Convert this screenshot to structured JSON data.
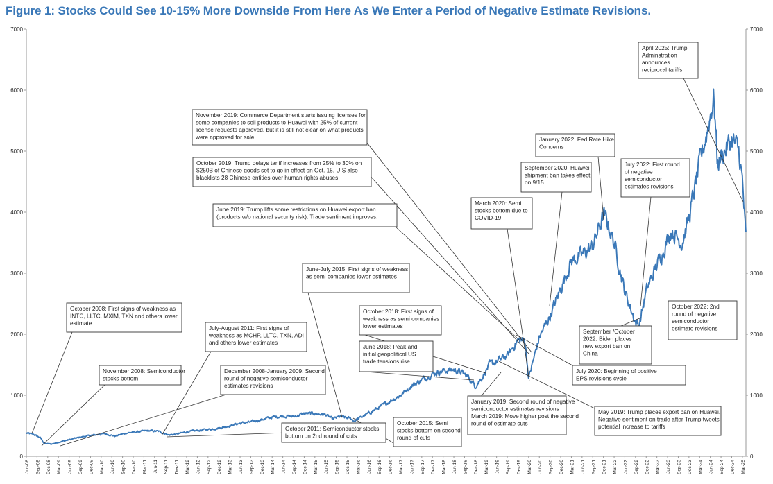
{
  "chart_data": {
    "type": "line",
    "title": "Figure 1: Stocks Could See 10-15% More Downside From Here As We Enter a Period of Negative Estimate Revisions.",
    "xlabel": "",
    "ylabel": "",
    "ylim": [
      0,
      7000
    ],
    "y_ticks": [
      0,
      1000,
      2000,
      3000,
      4000,
      5000,
      6000,
      7000
    ],
    "right_axis_mirrors_left": true,
    "grid": false,
    "legend": "none",
    "line_color": "#3a78b8",
    "x_tick_labels": [
      "Jun-08",
      "Sep-08",
      "Dec-08",
      "Mar-09",
      "Jun-09",
      "Sep-09",
      "Dec-09",
      "Mar-10",
      "Jun-10",
      "Sep-10",
      "Dec-10",
      "Mar-11",
      "Jun-11",
      "Sep-11",
      "Dec-11",
      "Mar-12",
      "Jun-12",
      "Sep-12",
      "Dec-12",
      "Mar-13",
      "Jun-13",
      "Sep-13",
      "Dec-13",
      "Mar-14",
      "Jun-14",
      "Sep-14",
      "Dec-14",
      "Mar-15",
      "Jun-15",
      "Sep-15",
      "Dec-15",
      "Mar-16",
      "Jun-16",
      "Sep-16",
      "Dec-16",
      "Mar-17",
      "Jun-17",
      "Sep-17",
      "Dec-17",
      "Mar-18",
      "Jun-18",
      "Sep-18",
      "Dec-18",
      "Mar-19",
      "Jun-19",
      "Sep-19",
      "Dec-19",
      "Mar-20",
      "Jun-20",
      "Sep-20",
      "Dec-20",
      "Mar-21",
      "Jun-21",
      "Sep-21",
      "Dec-21",
      "Mar-22",
      "Jun-22",
      "Sep-22",
      "Dec-22",
      "Mar-23",
      "Jun-23",
      "Sep-23",
      "Dec-23",
      "Mar-24",
      "Jun-24",
      "Sep-24",
      "Dec-24",
      "Mar-25"
    ],
    "series": [
      {
        "x": [
          "2008-06",
          "2008-08",
          "2008-10",
          "2008-11",
          "2009-01",
          "2009-03",
          "2009-06",
          "2009-09",
          "2009-12",
          "2010-04",
          "2010-07",
          "2010-10",
          "2011-01",
          "2011-04",
          "2011-07",
          "2011-10",
          "2011-12",
          "2012-03",
          "2012-06",
          "2012-09",
          "2012-12",
          "2013-03",
          "2013-06",
          "2013-09",
          "2013-12",
          "2014-03",
          "2014-06",
          "2014-09",
          "2014-12",
          "2015-03",
          "2015-06",
          "2015-08",
          "2015-10",
          "2016-01",
          "2016-02",
          "2016-06",
          "2016-09",
          "2016-12",
          "2017-03",
          "2017-06",
          "2017-09",
          "2017-12",
          "2018-03",
          "2018-06",
          "2018-08",
          "2018-10",
          "2018-12",
          "2019-02",
          "2019-04",
          "2019-06",
          "2019-09",
          "2019-12",
          "2020-02",
          "2020-03",
          "2020-06",
          "2020-09",
          "2020-12",
          "2021-03",
          "2021-06",
          "2021-09",
          "2021-12",
          "2022-01",
          "2022-03",
          "2022-06",
          "2022-09",
          "2022-10",
          "2022-12",
          "2023-02",
          "2023-05",
          "2023-07",
          "2023-10",
          "2023-12",
          "2024-03",
          "2024-05",
          "2024-07",
          "2024-08",
          "2024-10",
          "2024-12",
          "2025-01",
          "2025-02",
          "2025-03",
          "2025-04"
        ],
        "values": [
          380,
          360,
          300,
          210,
          200,
          230,
          270,
          310,
          340,
          370,
          330,
          380,
          400,
          420,
          410,
          350,
          360,
          400,
          420,
          440,
          460,
          500,
          540,
          560,
          600,
          640,
          660,
          650,
          700,
          700,
          680,
          610,
          650,
          620,
          580,
          700,
          800,
          900,
          1000,
          1150,
          1250,
          1350,
          1400,
          1420,
          1380,
          1300,
          1150,
          1300,
          1500,
          1550,
          1650,
          1900,
          1900,
          1280,
          1950,
          2300,
          2750,
          3200,
          3300,
          3450,
          3950,
          3850,
          3500,
          2700,
          2200,
          2150,
          2700,
          3000,
          3400,
          3700,
          3500,
          3900,
          4800,
          5300,
          5900,
          4800,
          5000,
          5200,
          5100,
          5000,
          4500,
          3550
        ]
      }
    ],
    "annotations": [
      {
        "lines": [
          "October 2008: First signs of weakness as",
          "INTC, LLTC, MXIM, TXN and others lower",
          "estimate"
        ],
        "target": "2008-06"
      },
      {
        "lines": [
          "November 2008: Semiconductor",
          "stocks bottom"
        ],
        "target": "2008-11"
      },
      {
        "lines": [
          "July-August 2011: First signs of",
          "weakness as MCHP, LLTC, TXN, ADI",
          "and others lower estimates"
        ],
        "target": "2011-07"
      },
      {
        "lines": [
          "December 2008-January 2009: Second",
          "round of negative semiconductor",
          "estimates revisions"
        ],
        "target": "2009-01"
      },
      {
        "lines": [
          "October 2011: Semiconductor stocks",
          "bottom on 2nd round of cuts"
        ],
        "target": "2011-10"
      },
      {
        "lines": [
          "June-July 2015: First signs of weakness",
          "as semi companies lower estimates"
        ],
        "target": "2015-06"
      },
      {
        "lines": [
          "October 2015: Semi",
          "stocks bottom on second",
          "round of cuts"
        ],
        "target": "2015-10"
      },
      {
        "lines": [
          "June 2018: Peak and",
          "initial geopolitical US",
          "trade tensions rise."
        ],
        "target": "2018-06"
      },
      {
        "lines": [
          "October 2018: First signs of",
          "weakness as semi companies",
          "lower estimates"
        ],
        "target": "2018-10"
      },
      {
        "lines": [
          "January 2019: Second round of negative",
          "semiconductor estimates revisions",
          "March 2019: Move higher post the second",
          "round of estimate cuts"
        ],
        "target": "2019-01"
      },
      {
        "lines": [
          "May 2019: Trump places export ban on Huawei.",
          "Negative sentiment on trade after Trump tweets",
          "potential increase to tariffs"
        ],
        "target": "2019-05"
      },
      {
        "lines": [
          "June 2019: Trump lifts some restrictions on Huawei export ban",
          "(products w/o national security risk). Trade sentiment improves."
        ],
        "target": "2019-06"
      },
      {
        "lines": [
          "October 2019: Trump delays tariff increases from 25% to 30% on",
          "$250B of Chinese goods set to go in effect on Oct. 15. U.S also",
          "blacklists 28 Chinese entities over human rights abuses."
        ],
        "target": "2019-10"
      },
      {
        "lines": [
          "November 2019: Commerce Department starts issuing licenses for",
          "some companies to sell products to Huawei with 25% of current",
          "license requests approved, but it is still not clear on what products",
          "were approved for sale."
        ],
        "target": "2019-11"
      },
      {
        "lines": [
          "March 2020: Semi",
          "stocks bottom due to",
          "COVID-19"
        ],
        "target": "2020-03"
      },
      {
        "lines": [
          "July 2020: Beginning of positive",
          "EPS revisions cycle"
        ],
        "target": "2020-07"
      },
      {
        "lines": [
          "September 2020: Huawei",
          "shipment ban takes effect",
          "on 9/15"
        ],
        "target": "2020-09"
      },
      {
        "lines": [
          "January 2022: Fed Rate Hike",
          "Concerns"
        ],
        "target": "2022-01"
      },
      {
        "lines": [
          "July 2022: First round",
          "of negative",
          "semiconductor",
          "estimates revisions"
        ],
        "target": "2022-07"
      },
      {
        "lines": [
          "September /October",
          "2022: Biden places",
          "new export ban on",
          "China"
        ],
        "target": "2022-09"
      },
      {
        "lines": [
          "October 2022: 2nd",
          "round of negative",
          "semiconductor",
          "estimate revisions"
        ],
        "target": "2022-10"
      },
      {
        "lines": [
          "April 2025: Trump",
          "Adminstration",
          "announces",
          "reciprocal tariffs"
        ],
        "target": "2025-04"
      }
    ]
  }
}
